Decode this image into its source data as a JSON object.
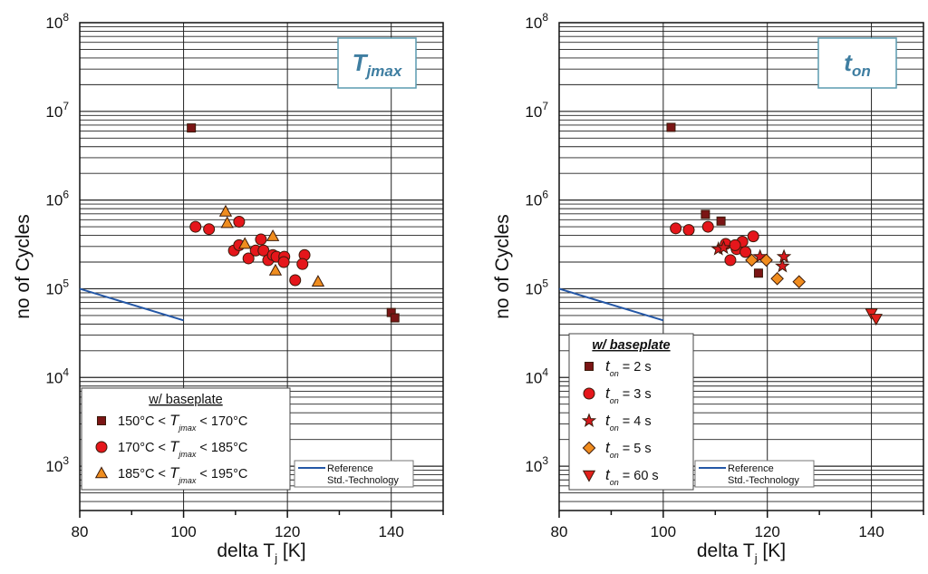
{
  "chart_data": [
    {
      "type": "scatter",
      "panel": "left",
      "inset_label": {
        "main": "T",
        "sub": "jmax"
      },
      "xlabel": {
        "main": "delta T",
        "sub": "j",
        "unit": " [K]"
      },
      "ylabel": "no of Cycles",
      "xlim": [
        80,
        150
      ],
      "ylim": [
        316.2,
        100000000
      ],
      "yscale": "log",
      "xticks": [
        80,
        100,
        120,
        140
      ],
      "yticks": [
        {
          "base": "10",
          "exp": "3",
          "v": 1000
        },
        {
          "base": "10",
          "exp": "4",
          "v": 10000
        },
        {
          "base": "10",
          "exp": "5",
          "v": 100000
        },
        {
          "base": "10",
          "exp": "6",
          "v": 1000000
        },
        {
          "base": "10",
          "exp": "7",
          "v": 10000000
        },
        {
          "base": "10",
          "exp": "8",
          "v": 100000000
        }
      ],
      "grid": true,
      "legend": {
        "title": "w/ baseplate",
        "placement": "bottom-left",
        "entries": [
          {
            "pre": "150°C < ",
            "T": "T",
            "sub": "jmax",
            "post": " < 170°C",
            "marker": "square",
            "color": "#7b1515"
          },
          {
            "pre": "170°C < ",
            "T": "T",
            "sub": "jmax",
            "post": " < 185°C",
            "marker": "circle",
            "color": "#e5161b"
          },
          {
            "pre": "185°C < ",
            "T": "T",
            "sub": "jmax",
            "post": " < 195°C",
            "marker": "triangle",
            "color": "#ef8d1f"
          }
        ]
      },
      "reference_legend": {
        "line1": "Reference",
        "line2": "Std.-Technology",
        "color": "#2457a6"
      },
      "reference_line": [
        [
          80,
          100000
        ],
        [
          100,
          44000
        ]
      ],
      "series": [
        {
          "marker": "square",
          "color": "#7b1515",
          "points": [
            [
              101.5,
              6500000
            ],
            [
              140,
              54000
            ],
            [
              140.7,
              47000
            ]
          ]
        },
        {
          "marker": "circle",
          "color": "#e5161b",
          "points": [
            [
              102.3,
              500000
            ],
            [
              104.9,
              470000
            ],
            [
              110.7,
              570000
            ],
            [
              109.7,
              270000
            ],
            [
              110.7,
              310000
            ],
            [
              112.5,
              220000
            ],
            [
              113.9,
              270000
            ],
            [
              114.9,
              360000
            ],
            [
              115.4,
              270000
            ],
            [
              116.3,
              210000
            ],
            [
              117.2,
              240000
            ],
            [
              117.9,
              230000
            ],
            [
              119.4,
              230000
            ],
            [
              119.3,
              200000
            ],
            [
              123.3,
              240000
            ],
            [
              122.9,
              190000
            ],
            [
              121.5,
              125000
            ]
          ]
        },
        {
          "marker": "triangle",
          "color": "#ef8d1f",
          "points": [
            [
              108.1,
              740000
            ],
            [
              108.4,
              550000
            ],
            [
              111.8,
              320000
            ],
            [
              117.2,
              390000
            ],
            [
              117.7,
              160000
            ],
            [
              125.9,
              120000
            ]
          ]
        }
      ]
    },
    {
      "type": "scatter",
      "panel": "right",
      "inset_label": {
        "main": "t",
        "sub": "on"
      },
      "xlabel": {
        "main": "delta T",
        "sub": "j",
        "unit": " [K]"
      },
      "ylabel": "no of Cycles",
      "xlim": [
        80,
        150
      ],
      "ylim": [
        316.2,
        100000000
      ],
      "yscale": "log",
      "xticks": [
        80,
        100,
        120,
        140
      ],
      "yticks": [
        {
          "base": "10",
          "exp": "3",
          "v": 1000
        },
        {
          "base": "10",
          "exp": "4",
          "v": 10000
        },
        {
          "base": "10",
          "exp": "5",
          "v": 100000
        },
        {
          "base": "10",
          "exp": "6",
          "v": 1000000
        },
        {
          "base": "10",
          "exp": "7",
          "v": 10000000
        },
        {
          "base": "10",
          "exp": "8",
          "v": 100000000
        }
      ],
      "grid": true,
      "legend": {
        "title": "w/ baseplate",
        "placement": "bottom-left",
        "entries": [
          {
            "T": "t",
            "sub": "on",
            "post": " = 2 s",
            "marker": "square",
            "color": "#7b1515"
          },
          {
            "T": "t",
            "sub": "on",
            "post": " = 3 s",
            "marker": "circle",
            "color": "#e5161b"
          },
          {
            "T": "t",
            "sub": "on",
            "post": " = 4 s",
            "marker": "star",
            "color": "#d8181c"
          },
          {
            "T": "t",
            "sub": "on",
            "post": " = 5 s",
            "marker": "diamond",
            "color": "#f08c1e"
          },
          {
            "T": "t",
            "sub": "on",
            "post": " = 60 s",
            "marker": "triangle-down",
            "color": "#e3201b"
          }
        ]
      },
      "reference_legend": {
        "line1": "Reference",
        "line2": "Std.-Technology",
        "color": "#2457a6"
      },
      "reference_line": [
        [
          80,
          100000
        ],
        [
          100,
          44000
        ]
      ],
      "series": [
        {
          "marker": "square",
          "color": "#7b1515",
          "points": [
            [
              101.5,
              6600000
            ],
            [
              108.1,
              690000
            ],
            [
              111.1,
              580000
            ],
            [
              118.3,
              150000
            ]
          ]
        },
        {
          "marker": "circle",
          "color": "#e5161b",
          "points": [
            [
              102.4,
              480000
            ],
            [
              104.9,
              460000
            ],
            [
              108.6,
              500000
            ],
            [
              112,
              320000
            ],
            [
              112.9,
              210000
            ],
            [
              114.1,
              280000
            ],
            [
              115.2,
              340000
            ],
            [
              115.8,
              260000
            ],
            [
              117.3,
              390000
            ],
            [
              113.8,
              310000
            ]
          ]
        },
        {
          "marker": "star",
          "color": "#d8181c",
          "points": [
            [
              110.6,
              280000
            ],
            [
              111.6,
              290000
            ],
            [
              118.6,
              230000
            ],
            [
              123.2,
              230000
            ],
            [
              122.9,
              180000
            ]
          ]
        },
        {
          "marker": "diamond",
          "color": "#f08c1e",
          "points": [
            [
              117,
              210000
            ],
            [
              119.8,
              210000
            ],
            [
              121.9,
              130000
            ],
            [
              126.1,
              120000
            ]
          ]
        },
        {
          "marker": "triangle-down",
          "color": "#e3201b",
          "points": [
            [
              140,
              53000
            ],
            [
              140.9,
              46000
            ]
          ]
        }
      ]
    }
  ]
}
